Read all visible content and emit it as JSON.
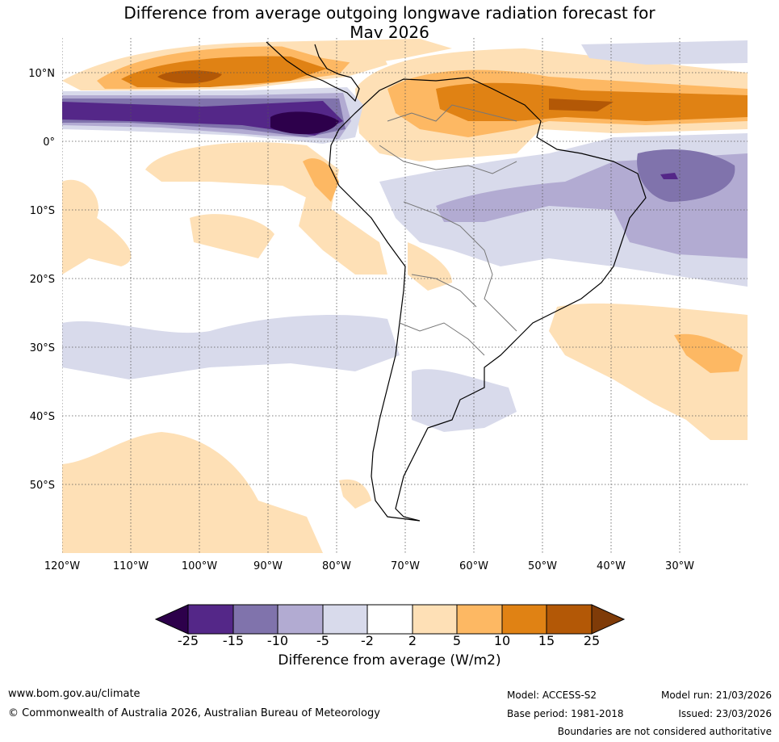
{
  "title_line1": "Difference from average outgoing longwave radiation forecast for",
  "title_line2": "May 2026",
  "lat_labels": [
    "10°N",
    "0°",
    "10°S",
    "20°S",
    "30°S",
    "40°S",
    "50°S"
  ],
  "lon_labels": [
    "120°W",
    "110°W",
    "100°W",
    "90°W",
    "80°W",
    "70°W",
    "60°W",
    "50°W",
    "40°W",
    "30°W"
  ],
  "colorbar": {
    "ticks": [
      "-25",
      "-15",
      "-10",
      "-5",
      "-2",
      "2",
      "5",
      "10",
      "15",
      "25"
    ],
    "label": "Difference from average (W/m2)",
    "colors": [
      "#2d004b",
      "#542788",
      "#8073ac",
      "#b2abd2",
      "#d8daeb",
      "#ffffff",
      "#fee0b6",
      "#fdb863",
      "#e08214",
      "#b35806",
      "#7f3b08"
    ]
  },
  "footer": {
    "website": "www.bom.gov.au/climate",
    "copyright": "© Commonwealth of Australia 2026, Australian Bureau of Meteorology",
    "model": "Model: ACCESS-S2",
    "base_period": "Base period: 1981-2018",
    "model_run": "Model run: 21/03/2026",
    "issued": "Issued: 23/03/2026",
    "disclaimer": "Boundaries are not considered authoritative"
  }
}
